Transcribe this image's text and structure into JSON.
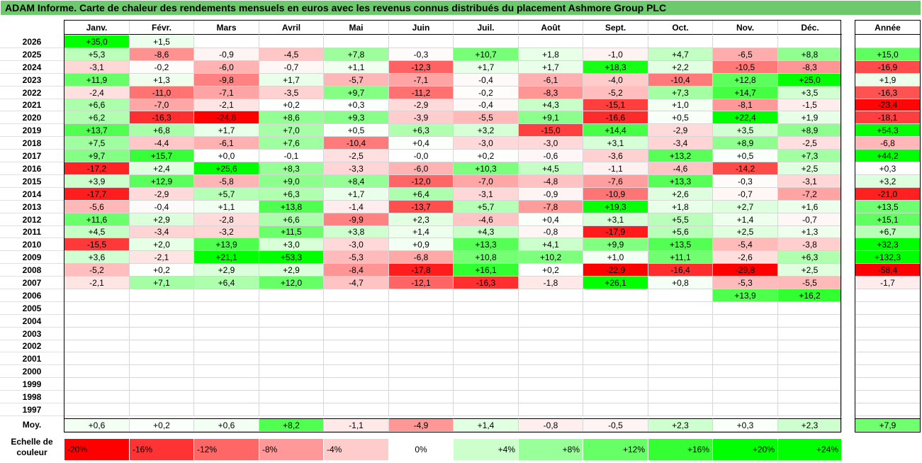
{
  "title": "ADAM Informe. Carte de chaleur des rendements mensuels en euros avec les revenus connus distribués du placement Ashmore Group PLC",
  "chart_data": {
    "type": "heatmap",
    "months": [
      "Janv.",
      "Févr.",
      "Mars",
      "Avril",
      "Mai",
      "Juin",
      "Juil.",
      "Août",
      "Sept.",
      "Oct.",
      "Nov.",
      "Déc."
    ],
    "year_header": "Année",
    "rows": [
      {
        "year": "2026",
        "m": [
          "+35,0",
          "+1,5",
          "",
          "",
          "",
          "",
          "",
          "",
          "",
          "",
          "",
          ""
        ],
        "y": ""
      },
      {
        "year": "2025",
        "m": [
          "+5,3",
          "-8,6",
          "-0,9",
          "-4,5",
          "+7,8",
          "-0,3",
          "+10,7",
          "+1,8",
          "-1,0",
          "+4,7",
          "-6,5",
          "+8,8"
        ],
        "y": "+15,0"
      },
      {
        "year": "2024",
        "m": [
          "-3,1",
          "-0,2",
          "-6,0",
          "-0,7",
          "+1,1",
          "-12,3",
          "+1,7",
          "+1,7",
          "+18,3",
          "+2,2",
          "-10,5",
          "-8,3"
        ],
        "y": "-16,9"
      },
      {
        "year": "2023",
        "m": [
          "+11,9",
          "+1,3",
          "-9,8",
          "+1,7",
          "-5,7",
          "-7,1",
          "-0,4",
          "-6,1",
          "-4,0",
          "-10,4",
          "+12,8",
          "+25,0"
        ],
        "y": "+1,9"
      },
      {
        "year": "2022",
        "m": [
          "-2,4",
          "-11,0",
          "-7,1",
          "-3,5",
          "+9,7",
          "-11,2",
          "-0,2",
          "-8,3",
          "-5,2",
          "+7,3",
          "+14,7",
          "+3,5"
        ],
        "y": "-16,3"
      },
      {
        "year": "2021",
        "m": [
          "+6,6",
          "-7,0",
          "-2,1",
          "+0,2",
          "+0,3",
          "-2,9",
          "-0,4",
          "+4,3",
          "-15,1",
          "+1,0",
          "-8,1",
          "-1,5"
        ],
        "y": "-23,4"
      },
      {
        "year": "2020",
        "m": [
          "+6,2",
          "-16,3",
          "-24,8",
          "+8,6",
          "+9,3",
          "-3,9",
          "-5,5",
          "+9,1",
          "-16,6",
          "+0,5",
          "+22,4",
          "+1,9"
        ],
        "y": "-18,1"
      },
      {
        "year": "2019",
        "m": [
          "+13,7",
          "+6,8",
          "+1,7",
          "+7,0",
          "+0,5",
          "+6,3",
          "+3,2",
          "-15,0",
          "+14,4",
          "-2,9",
          "+3,5",
          "+8,9"
        ],
        "y": "+54,3"
      },
      {
        "year": "2018",
        "m": [
          "+7,5",
          "-4,4",
          "-6,1",
          "+7,6",
          "-10,4",
          "+0,4",
          "-3,0",
          "-3,0",
          "+3,1",
          "-3,4",
          "+8,9",
          "-2,5"
        ],
        "y": "-6,8"
      },
      {
        "year": "2017",
        "m": [
          "+9,7",
          "+15,7",
          "+0,0",
          "-0,1",
          "-2,5",
          "-0,0",
          "+0,2",
          "-0,6",
          "-3,6",
          "+13,2",
          "+0,5",
          "+7,3"
        ],
        "y": "+44,2"
      },
      {
        "year": "2016",
        "m": [
          "-17,2",
          "+2,4",
          "+25,6",
          "+8,3",
          "-3,3",
          "-6,0",
          "+10,3",
          "+4,5",
          "-1,1",
          "-4,6",
          "-14,2",
          "+2,5"
        ],
        "y": "+0,3"
      },
      {
        "year": "2015",
        "m": [
          "+3,9",
          "+12,9",
          "-5,8",
          "+9,0",
          "+8,4",
          "-12,0",
          "-7,0",
          "-4,8",
          "-7,6",
          "+13,3",
          "-0,3",
          "-3,1"
        ],
        "y": "+3,2"
      },
      {
        "year": "2014",
        "m": [
          "-17,7",
          "-2,9",
          "+5,7",
          "+6,3",
          "+1,7",
          "+6,4",
          "-3,1",
          "-0,9",
          "-10,9",
          "+2,6",
          "-0,7",
          "-7,2"
        ],
        "y": "-21,0"
      },
      {
        "year": "2013",
        "m": [
          "-5,6",
          "-0,4",
          "+1,1",
          "+13,8",
          "-1,4",
          "-13,7",
          "+5,7",
          "-7,8",
          "+19,3",
          "+1,8",
          "+2,7",
          "+1,6"
        ],
        "y": "+13,5"
      },
      {
        "year": "2012",
        "m": [
          "+11,6",
          "+2,9",
          "-2,8",
          "+6,6",
          "-9,9",
          "+2,3",
          "-4,6",
          "+0,4",
          "+3,1",
          "+5,5",
          "+1,4",
          "-0,7"
        ],
        "y": "+15,1"
      },
      {
        "year": "2011",
        "m": [
          "+4,5",
          "-3,4",
          "-3,2",
          "+11,5",
          "+3,8",
          "+1,4",
          "+4,3",
          "-0,8",
          "-17,9",
          "+5,6",
          "+2,5",
          "+1,3"
        ],
        "y": "+6,7"
      },
      {
        "year": "2010",
        "m": [
          "-15,5",
          "+2,0",
          "+13,9",
          "+3,0",
          "-3,0",
          "+0,9",
          "+13,3",
          "+4,1",
          "+9,9",
          "+13,5",
          "-5,4",
          "-3,8"
        ],
        "y": "+32,3"
      },
      {
        "year": "2009",
        "m": [
          "+3,6",
          "-2,1",
          "+21,1",
          "+53,3",
          "-5,3",
          "-6,8",
          "+10,8",
          "+10,2",
          "+1,0",
          "+11,1",
          "-2,6",
          "+6,3"
        ],
        "y": "+132,3"
      },
      {
        "year": "2008",
        "m": [
          "-5,2",
          "+0,2",
          "+2,9",
          "+2,9",
          "-8,4",
          "-17,8",
          "+16,1",
          "+0,2",
          "-22,9",
          "-16,4",
          "-29,8",
          "+2,5"
        ],
        "y": "-58,4"
      },
      {
        "year": "2007",
        "m": [
          "-2,1",
          "+7,1",
          "+6,4",
          "+12,0",
          "-4,7",
          "-12,1",
          "-16,3",
          "-1,8",
          "+26,1",
          "+0,8",
          "-5,3",
          "-5,5"
        ],
        "y": "-1,7"
      },
      {
        "year": "2006",
        "m": [
          "",
          "",
          "",
          "",
          "",
          "",
          "",
          "",
          "",
          "",
          "+13,9",
          "+16,2"
        ],
        "y": ""
      },
      {
        "year": "2005",
        "m": [
          "",
          "",
          "",
          "",
          "",
          "",
          "",
          "",
          "",
          "",
          "",
          ""
        ],
        "y": ""
      },
      {
        "year": "2004",
        "m": [
          "",
          "",
          "",
          "",
          "",
          "",
          "",
          "",
          "",
          "",
          "",
          ""
        ],
        "y": ""
      },
      {
        "year": "2003",
        "m": [
          "",
          "",
          "",
          "",
          "",
          "",
          "",
          "",
          "",
          "",
          "",
          ""
        ],
        "y": ""
      },
      {
        "year": "2002",
        "m": [
          "",
          "",
          "",
          "",
          "",
          "",
          "",
          "",
          "",
          "",
          "",
          ""
        ],
        "y": ""
      },
      {
        "year": "2001",
        "m": [
          "",
          "",
          "",
          "",
          "",
          "",
          "",
          "",
          "",
          "",
          "",
          ""
        ],
        "y": ""
      },
      {
        "year": "2000",
        "m": [
          "",
          "",
          "",
          "",
          "",
          "",
          "",
          "",
          "",
          "",
          "",
          ""
        ],
        "y": ""
      },
      {
        "year": "1999",
        "m": [
          "",
          "",
          "",
          "",
          "",
          "",
          "",
          "",
          "",
          "",
          "",
          ""
        ],
        "y": ""
      },
      {
        "year": "1998",
        "m": [
          "",
          "",
          "",
          "",
          "",
          "",
          "",
          "",
          "",
          "",
          "",
          ""
        ],
        "y": ""
      },
      {
        "year": "1997",
        "m": [
          "",
          "",
          "",
          "",
          "",
          "",
          "",
          "",
          "",
          "",
          "",
          ""
        ],
        "y": ""
      }
    ],
    "average": {
      "label": "Moy.",
      "m": [
        "+0,6",
        "+0,2",
        "+0,6",
        "+8,2",
        "-1,1",
        "-4,9",
        "+1,4",
        "-0,8",
        "-0,5",
        "+2,3",
        "+0,3",
        "+2,3"
      ],
      "y": "+7,9"
    },
    "legend": {
      "title": "Echelle de couleur",
      "steps": [
        {
          "label": "-20%",
          "color": "#ff0000",
          "align": "left"
        },
        {
          "label": "-16%",
          "color": "#ff3333",
          "align": "left"
        },
        {
          "label": "-12%",
          "color": "#ff6666",
          "align": "left"
        },
        {
          "label": "-8%",
          "color": "#ff9999",
          "align": "left"
        },
        {
          "label": "-4%",
          "color": "#ffcccc",
          "align": "left"
        },
        {
          "label": "0%",
          "color": "#ffffff",
          "align": "center"
        },
        {
          "label": "+4%",
          "color": "#ccffcc",
          "align": "right"
        },
        {
          "label": "+8%",
          "color": "#99ff99",
          "align": "right"
        },
        {
          "label": "+12%",
          "color": "#66ff66",
          "align": "right"
        },
        {
          "label": "+16%",
          "color": "#33ff33",
          "align": "right"
        },
        {
          "label": "+20%",
          "color": "#00ff00",
          "align": "right"
        },
        {
          "label": "+24%",
          "color": "#00ff00",
          "align": "right"
        }
      ]
    }
  }
}
